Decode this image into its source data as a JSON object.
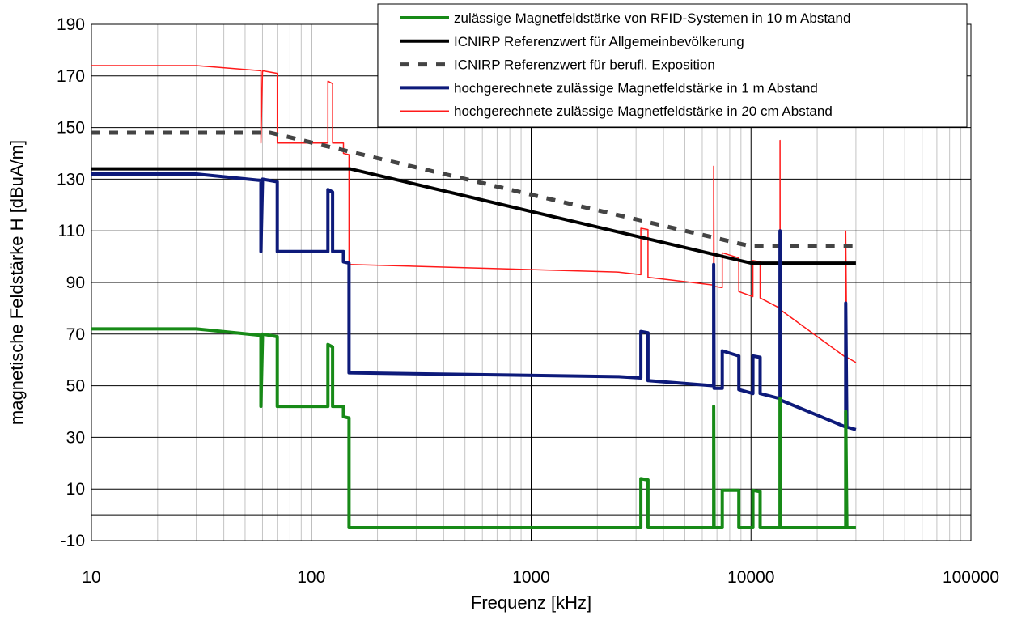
{
  "chart_data": {
    "type": "line",
    "title": "",
    "xlabel": "Frequenz [kHz]",
    "ylabel": "magnetische Feldstärke H [dBuA/m]",
    "xscale": "log",
    "xlim": [
      10,
      100000
    ],
    "ylim": [
      -10,
      190
    ],
    "xticks": [
      "10",
      "100",
      "1000",
      "10000",
      "100000"
    ],
    "yticks": [
      "-10",
      "10",
      "30",
      "50",
      "70",
      "90",
      "110",
      "130",
      "150",
      "170",
      "190"
    ],
    "grid": true,
    "legend_position": "top-right",
    "series": [
      {
        "name": "zulässige Magnetfeldstärke von RFID-Systemen in 10 m Abstand",
        "color": "#178a17",
        "style": "solid-thick",
        "points": [
          [
            10,
            72
          ],
          [
            30,
            72
          ],
          [
            59,
            69.5
          ],
          [
            59,
            42
          ],
          [
            60,
            70
          ],
          [
            70,
            69
          ],
          [
            70,
            42
          ],
          [
            119,
            42
          ],
          [
            119,
            66
          ],
          [
            125,
            65
          ],
          [
            125,
            42
          ],
          [
            140,
            42
          ],
          [
            140,
            38
          ],
          [
            148.5,
            37.5
          ],
          [
            148.5,
            -5
          ],
          [
            3155,
            -5
          ],
          [
            3155,
            14
          ],
          [
            3400,
            13.5
          ],
          [
            3400,
            -5
          ],
          [
            6765,
            -5
          ],
          [
            6765,
            42
          ],
          [
            6795,
            -5
          ],
          [
            7400,
            -5
          ],
          [
            7400,
            9.5
          ],
          [
            8800,
            9.5
          ],
          [
            8800,
            -5
          ],
          [
            10200,
            -5
          ],
          [
            10200,
            9.5
          ],
          [
            11000,
            9
          ],
          [
            11000,
            -5
          ],
          [
            13553,
            -5
          ],
          [
            13553,
            45
          ],
          [
            13567,
            -5
          ],
          [
            26957,
            -5
          ],
          [
            26957,
            40
          ],
          [
            27283,
            -5
          ],
          [
            30000,
            -5
          ]
        ]
      },
      {
        "name": "ICNIRP Referenzwert für Allgemeinbevölkerung",
        "color": "#000000",
        "style": "solid-thick",
        "points": [
          [
            10,
            134
          ],
          [
            150,
            134
          ],
          [
            1000,
            117.5
          ],
          [
            10000,
            97.5
          ],
          [
            30000,
            97.5
          ]
        ]
      },
      {
        "name": "ICNIRP Referenzwert für berufl. Exposition",
        "color": "#444444",
        "style": "dashed",
        "points": [
          [
            10,
            148
          ],
          [
            65,
            148
          ],
          [
            1000,
            124
          ],
          [
            10000,
            104
          ],
          [
            30000,
            104
          ]
        ]
      },
      {
        "name": "hochgerechnete zulässige Magnetfeldstärke in 1 m Abstand",
        "color": "#0d1a7a",
        "style": "solid-thick",
        "points": [
          [
            10,
            132
          ],
          [
            30,
            132
          ],
          [
            59,
            129.5
          ],
          [
            59,
            102
          ],
          [
            60,
            130
          ],
          [
            70,
            129
          ],
          [
            70,
            102
          ],
          [
            119,
            102
          ],
          [
            119,
            126
          ],
          [
            125,
            125
          ],
          [
            125,
            102
          ],
          [
            140,
            102
          ],
          [
            140,
            98
          ],
          [
            148.5,
            97.5
          ],
          [
            148.5,
            55
          ],
          [
            2500,
            53.5
          ],
          [
            3155,
            53
          ],
          [
            3155,
            71
          ],
          [
            3400,
            70.5
          ],
          [
            3400,
            52
          ],
          [
            6765,
            50
          ],
          [
            6765,
            97
          ],
          [
            6795,
            49
          ],
          [
            7400,
            49
          ],
          [
            7400,
            63.5
          ],
          [
            8800,
            61.5
          ],
          [
            8800,
            48.5
          ],
          [
            10200,
            47
          ],
          [
            10200,
            61.5
          ],
          [
            11000,
            61
          ],
          [
            11000,
            47
          ],
          [
            13553,
            45
          ],
          [
            13553,
            110
          ],
          [
            13567,
            44.5
          ],
          [
            26957,
            34
          ],
          [
            26957,
            82
          ],
          [
            27283,
            34
          ],
          [
            30000,
            33
          ]
        ]
      },
      {
        "name": "hochgerechnete zulässige Magnetfeldstärke in 20 cm Abstand",
        "color": "#ff1a1a",
        "style": "solid-thin",
        "points": [
          [
            10,
            174
          ],
          [
            30,
            174
          ],
          [
            59,
            172
          ],
          [
            59,
            144
          ],
          [
            60,
            172
          ],
          [
            70,
            171
          ],
          [
            70,
            144
          ],
          [
            119,
            144
          ],
          [
            119,
            168
          ],
          [
            125,
            167
          ],
          [
            125,
            144
          ],
          [
            140,
            144
          ],
          [
            140,
            140
          ],
          [
            148.5,
            139.5
          ],
          [
            148.5,
            97
          ],
          [
            2500,
            94
          ],
          [
            3155,
            93
          ],
          [
            3155,
            111
          ],
          [
            3400,
            110.5
          ],
          [
            3400,
            92
          ],
          [
            6765,
            89
          ],
          [
            6765,
            135
          ],
          [
            6795,
            88.5
          ],
          [
            7400,
            88
          ],
          [
            7400,
            101.5
          ],
          [
            8800,
            99.5
          ],
          [
            8800,
            86.5
          ],
          [
            10200,
            84.5
          ],
          [
            10200,
            98.5
          ],
          [
            11000,
            98
          ],
          [
            11000,
            84
          ],
          [
            13553,
            80
          ],
          [
            13553,
            145
          ],
          [
            13567,
            79.5
          ],
          [
            26957,
            61
          ],
          [
            26957,
            110
          ],
          [
            27283,
            61
          ],
          [
            30000,
            59
          ]
        ]
      }
    ]
  }
}
